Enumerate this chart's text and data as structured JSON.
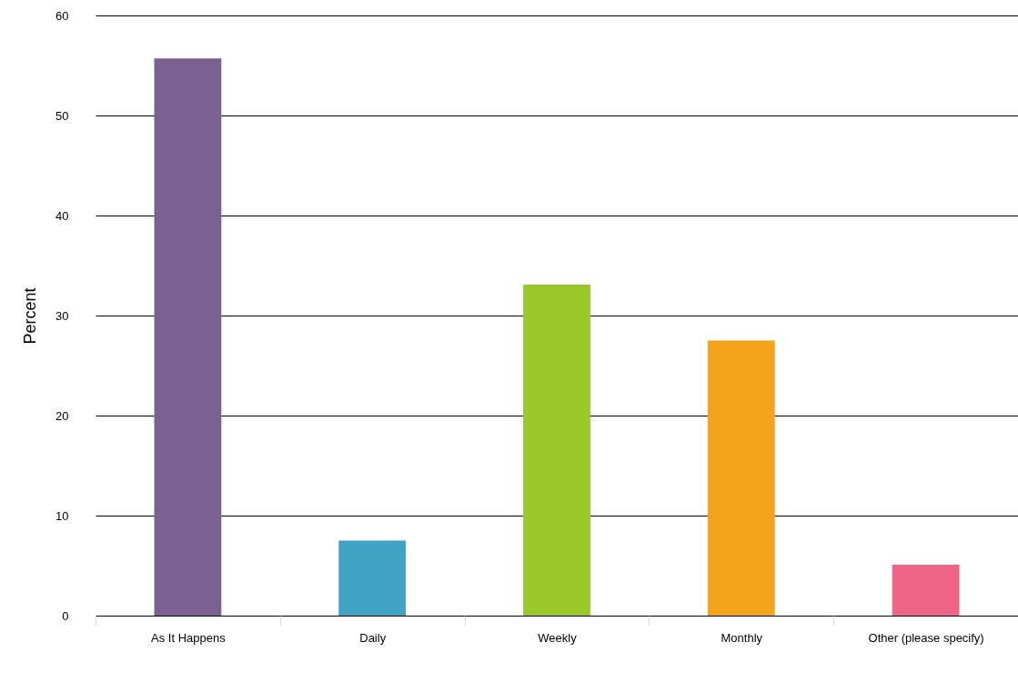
{
  "chart_data": {
    "type": "bar",
    "ylabel": "Percent",
    "categories": [
      "As It Happens",
      "Daily",
      "Weekly",
      "Monthly",
      "Other (please specify)"
    ],
    "values": [
      55.7,
      7.5,
      33.1,
      27.5,
      5.1
    ],
    "colors": [
      "#7b6190",
      "#40a3c3",
      "#98c928",
      "#f4a41b",
      "#ee6587"
    ],
    "ylim": [
      0,
      60
    ],
    "yticks": [
      0,
      10,
      20,
      30,
      40,
      50,
      60
    ],
    "grid": "y"
  }
}
